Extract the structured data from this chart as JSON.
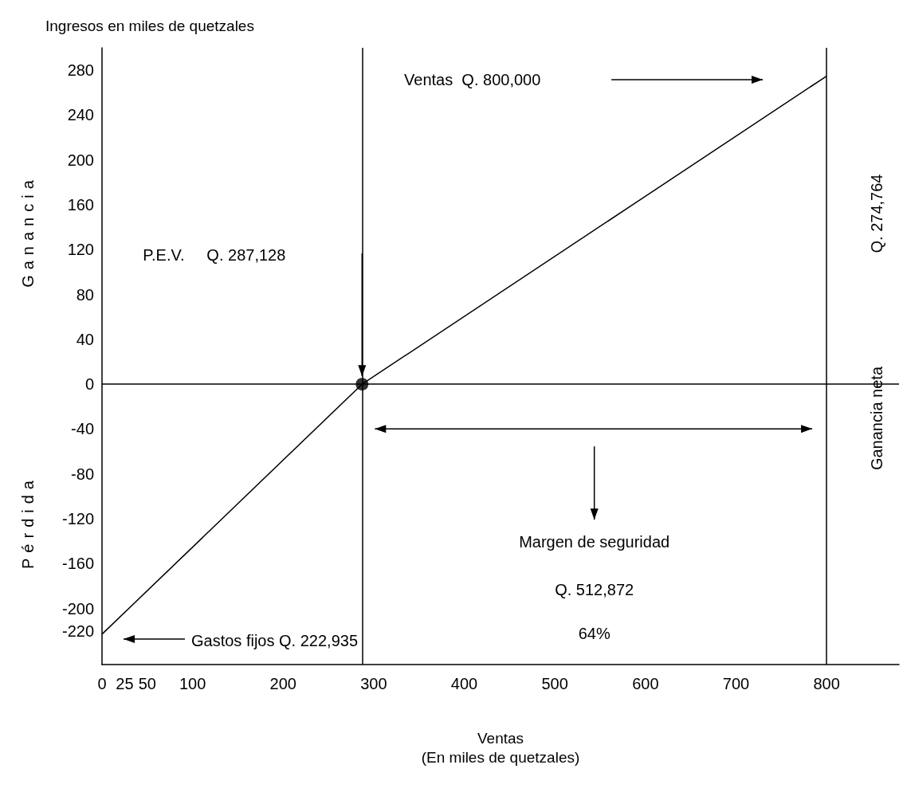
{
  "chart_data": {
    "type": "line",
    "title": "Ingresos en miles de quetzales",
    "xlabel": "Ventas\n(En miles de quetzales)",
    "ylabel": "Ganancia",
    "xlim": [
      0,
      880
    ],
    "xticks": [
      0,
      25,
      50,
      100,
      200,
      300,
      400,
      500,
      600,
      700,
      800
    ],
    "ylim": [
      -250,
      300
    ],
    "yticks": [
      -220,
      -200,
      -160,
      -120,
      -80,
      -40,
      0,
      40,
      80,
      120,
      160,
      200,
      240,
      280
    ],
    "grid": false,
    "series": [
      {
        "color": "#000000",
        "marker": "none",
        "x": [
          0,
          287.128,
          800
        ],
        "values": [
          -222.935,
          0,
          274.764
        ]
      },
      {
        "type": "scatter",
        "color": "#000000",
        "marker": "circle",
        "x": [
          287.128
        ],
        "values": [
          0
        ]
      }
    ],
    "ref_lines": [
      {
        "axis": "y",
        "value": 0,
        "color": "#000000"
      },
      {
        "axis": "x",
        "value": 287.128,
        "color": "#000000"
      },
      {
        "axis": "x",
        "value": 800,
        "color": "#000000"
      }
    ],
    "annotations": [
      "Ventas  Q. 800,000",
      "P.E.V.     Q. 287,128",
      "Gastos fijos Q. 222,935",
      "Margen de seguridad",
      "Q. 512,872",
      "64%",
      "Ganancia neta",
      "Q. 274,764",
      "Pérdida"
    ]
  }
}
